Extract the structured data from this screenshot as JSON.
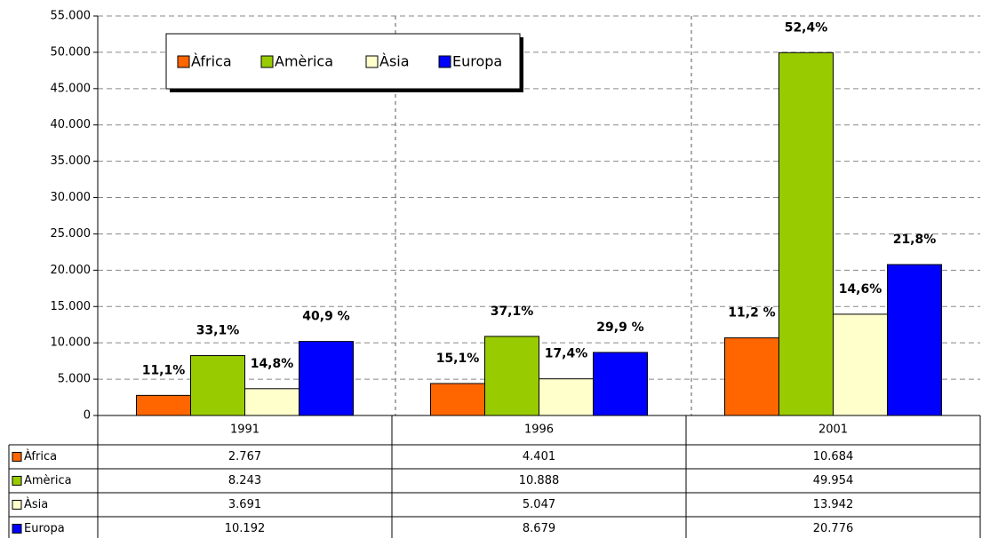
{
  "chart_data": {
    "type": "bar",
    "categories": [
      "1991",
      "1996",
      "2001"
    ],
    "series": [
      {
        "name": "Àfrica",
        "color": "#ff6600",
        "values": [
          2767,
          4401,
          10684
        ],
        "value_labels": [
          "2.767",
          "4.401",
          "10.684"
        ],
        "percent_labels": [
          "11,1%",
          "15,1%",
          "11,2 %"
        ]
      },
      {
        "name": "Amèrica",
        "color": "#99cc00",
        "values": [
          8243,
          10888,
          49954
        ],
        "value_labels": [
          "8.243",
          "10.888",
          "49.954"
        ],
        "percent_labels": [
          "33,1%",
          "37,1%",
          "52,4%"
        ]
      },
      {
        "name": "Àsia",
        "color": "#ffffcc",
        "values": [
          3691,
          5047,
          13942
        ],
        "value_labels": [
          "3.691",
          "5.047",
          "13.942"
        ],
        "percent_labels": [
          "14,8%",
          "17,4%",
          "14,6%"
        ]
      },
      {
        "name": "Europa",
        "color": "#0000ff",
        "values": [
          10192,
          8679,
          20776
        ],
        "value_labels": [
          "10.192",
          "8.679",
          "20.776"
        ],
        "percent_labels": [
          "40,9 %",
          "29,9 %",
          "21,8%"
        ]
      }
    ],
    "ylim": [
      0,
      55000
    ],
    "yticks": [
      0,
      {
        "value": 5000,
        "label": "5.000"
      },
      {
        "value": 10000,
        "label": "10.000"
      },
      {
        "value": 15000,
        "label": "15.000"
      },
      {
        "value": 20000,
        "label": "20.000"
      },
      {
        "value": 25000,
        "label": "25.000"
      },
      {
        "value": 30000,
        "label": "30.000"
      },
      {
        "value": 35000,
        "label": "35.000"
      },
      {
        "value": 40000,
        "label": "40.000"
      },
      {
        "value": 45000,
        "label": "45.000"
      },
      {
        "value": 50000,
        "label": "50.000"
      },
      {
        "value": 55000,
        "label": "55.000"
      }
    ],
    "grid": true,
    "legend": "top-left"
  }
}
